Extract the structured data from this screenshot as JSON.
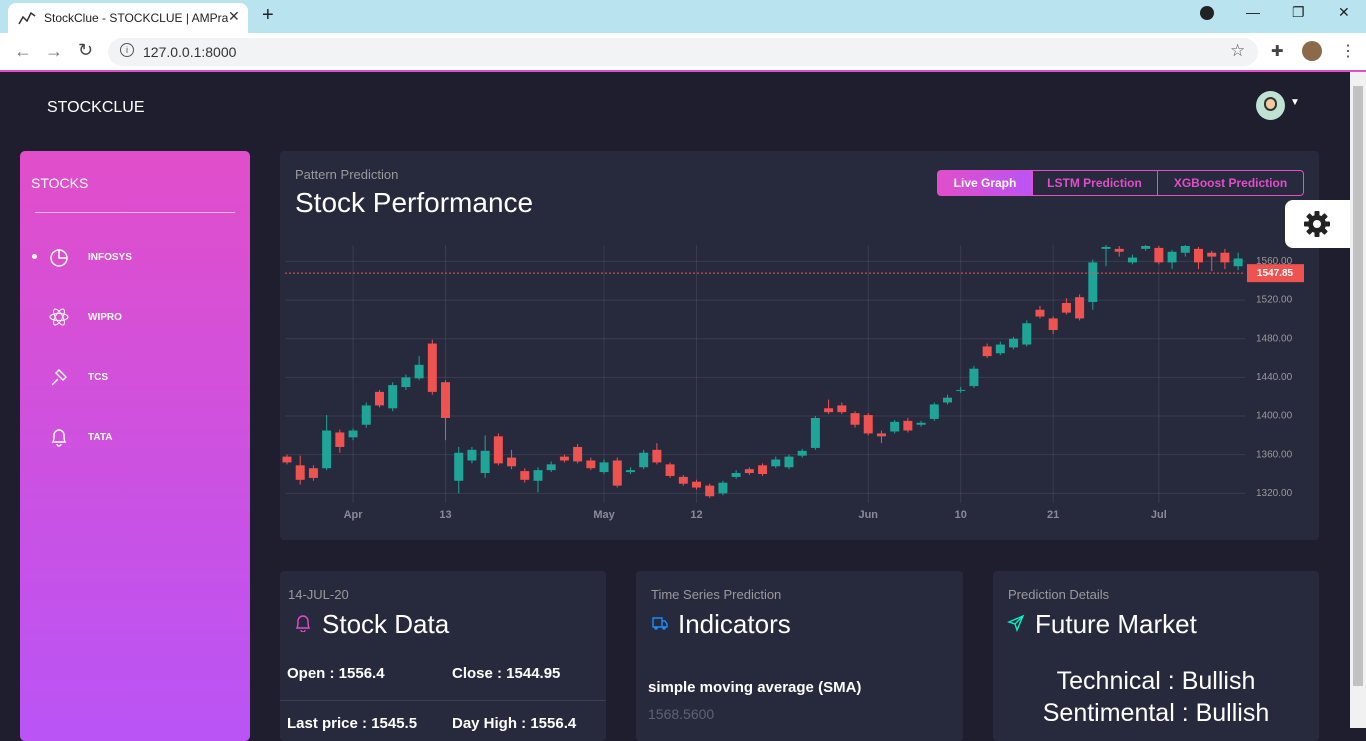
{
  "browser": {
    "tab_title": "StockClue - STOCKCLUE | AMPra",
    "url": "127.0.0.1:8000"
  },
  "navbar": {
    "brand": "STOCKCLUE"
  },
  "sidebar": {
    "title": "STOCKS",
    "items": [
      "INFOSYS",
      "WIPRO",
      "TCS",
      "TATA"
    ]
  },
  "main_card": {
    "subtitle": "Pattern Prediction",
    "title": "Stock Performance",
    "buttons": [
      "Live Graph",
      "LSTM Prediction",
      "XGBoost Prediction"
    ]
  },
  "chart_data": {
    "type": "candlestick",
    "up_color": "#1fa598",
    "down_color": "#ef5350",
    "grid": true,
    "categories": [
      null,
      null,
      null,
      null,
      null,
      "Apr",
      null,
      null,
      null,
      null,
      null,
      null,
      "13",
      null,
      null,
      null,
      null,
      null,
      null,
      null,
      null,
      null,
      null,
      null,
      "May",
      null,
      null,
      null,
      null,
      null,
      null,
      "12",
      null,
      null,
      null,
      null,
      null,
      null,
      null,
      null,
      null,
      null,
      null,
      null,
      "Jun",
      null,
      null,
      null,
      null,
      null,
      null,
      "10",
      null,
      null,
      null,
      null,
      null,
      null,
      "21",
      null,
      null,
      null,
      null,
      null,
      null,
      null,
      "Jul",
      null,
      null,
      null,
      null,
      null,
      null
    ],
    "open": [
      1358,
      1349,
      1346,
      1346,
      1383,
      1378,
      1391,
      1425,
      1408,
      1430,
      1439,
      1475,
      1435,
      1333,
      1354,
      1341,
      1379,
      1357,
      1343,
      1333,
      1344,
      1358,
      1368,
      1354,
      1342,
      1354,
      1342,
      1347,
      1365,
      1350,
      1337,
      1332,
      1328,
      1320,
      1337,
      1345,
      1349,
      1348,
      1347,
      1359,
      1367,
      1408,
      1411,
      1403,
      1401,
      1382,
      1384,
      1395,
      1391,
      1397,
      1414,
      1426,
      1431,
      1472,
      1465,
      1471,
      1474,
      1510,
      1501,
      1517,
      1523,
      1518,
      1573,
      1573,
      1559,
      1573,
      1574,
      1559,
      1569,
      1573,
      1569,
      1569,
      1555
    ],
    "high": [
      1360,
      1359,
      1349,
      1401,
      1386,
      1387,
      1414,
      1427,
      1435,
      1443,
      1462,
      1479,
      1437,
      1368,
      1368,
      1380,
      1382,
      1365,
      1346,
      1347,
      1353,
      1360,
      1371,
      1357,
      1355,
      1357,
      1347,
      1365,
      1372,
      1352,
      1339,
      1334,
      1330,
      1333,
      1344,
      1347,
      1351,
      1358,
      1360,
      1366,
      1400,
      1417,
      1414,
      1405,
      1403,
      1385,
      1396,
      1398,
      1395,
      1414,
      1422,
      1430,
      1452,
      1475,
      1477,
      1482,
      1499,
      1514,
      1503,
      1522,
      1526,
      1562,
      1577,
      1576,
      1567,
      1577,
      1576,
      1572,
      1577,
      1575,
      1571,
      1573,
      1569
    ],
    "low": [
      1350,
      1329,
      1333,
      1344,
      1362,
      1375,
      1388,
      1409,
      1405,
      1427,
      1437,
      1422,
      1375,
      1320,
      1351,
      1336,
      1349,
      1345,
      1331,
      1321,
      1342,
      1352,
      1351,
      1344,
      1340,
      1326,
      1340,
      1345,
      1350,
      1336,
      1328,
      1324,
      1315,
      1318,
      1335,
      1339,
      1338,
      1346,
      1345,
      1357,
      1365,
      1402,
      1402,
      1388,
      1380,
      1372,
      1382,
      1383,
      1389,
      1395,
      1412,
      1424,
      1429,
      1460,
      1463,
      1469,
      1472,
      1501,
      1485,
      1505,
      1499,
      1510,
      1555,
      1565,
      1557,
      1571,
      1557,
      1552,
      1565,
      1552,
      1550,
      1552,
      1551
    ],
    "close": [
      1352,
      1334,
      1336,
      1385,
      1368,
      1385,
      1411,
      1411,
      1432,
      1440,
      1453,
      1425,
      1398,
      1362,
      1365,
      1364,
      1351,
      1348,
      1334,
      1344,
      1350,
      1354,
      1353,
      1346,
      1352,
      1328,
      1344,
      1362,
      1352,
      1338,
      1330,
      1326,
      1317,
      1331,
      1341,
      1341,
      1340,
      1355,
      1358,
      1364,
      1398,
      1404,
      1404,
      1391,
      1382,
      1379,
      1394,
      1385,
      1393,
      1412,
      1419,
      1427,
      1449,
      1462,
      1474,
      1480,
      1496,
      1503,
      1489,
      1507,
      1501,
      1559,
      1575,
      1570,
      1564,
      1576,
      1559,
      1570,
      1576,
      1559,
      1565,
      1559,
      1563
    ],
    "ylim": [
      1310,
      1577
    ],
    "yticks": [
      {
        "value": 1320,
        "label": "1320.00"
      },
      {
        "value": 1360,
        "label": "1360.00"
      },
      {
        "value": 1400,
        "label": "1400.00"
      },
      {
        "value": 1440,
        "label": "1440.00"
      },
      {
        "value": 1480,
        "label": "1480.00"
      },
      {
        "value": 1520,
        "label": "1520.00"
      },
      {
        "value": 1560,
        "label": "1560.00"
      }
    ],
    "last_price": 1547.85
  },
  "stock_card": {
    "date": "14-JUL-20",
    "title": "Stock Data",
    "rows": [
      [
        "Open : 1556.4",
        "Close : 1544.95"
      ],
      [
        "Last price : 1545.5",
        "Day High : 1556.4"
      ]
    ]
  },
  "indicator_card": {
    "subtitle": "Time Series Prediction",
    "title": "Indicators",
    "label": "simple moving average (SMA)",
    "value": "1568.5600"
  },
  "future_card": {
    "subtitle": "Prediction Details",
    "title": "Future Market",
    "lines": [
      "Technical : Bullish",
      "Sentimental : Bullish"
    ]
  }
}
